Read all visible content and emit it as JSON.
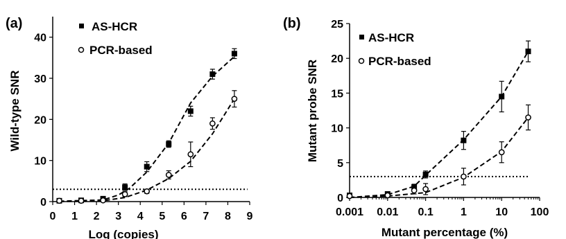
{
  "chart_data": [
    {
      "panel_label": "(a)",
      "type": "scatter",
      "xlabel": "Log (copies)",
      "ylabel": "Wild-type SNR",
      "xlim": [
        0,
        9
      ],
      "ylim": [
        0,
        45
      ],
      "x_ticks": [
        "0",
        "1",
        "2",
        "3",
        "4",
        "5",
        "6",
        "7",
        "8",
        "9"
      ],
      "y_ticks": [
        "0",
        "10",
        "20",
        "30",
        "40"
      ],
      "threshold": 3,
      "legend_position": "top-left",
      "series": [
        {
          "name": "AS-HCR",
          "marker": "filled-square",
          "points": [
            {
              "x": 0.3,
              "y": 0.2,
              "err": 0.4
            },
            {
              "x": 1.3,
              "y": 0.3,
              "err": 0.4
            },
            {
              "x": 2.3,
              "y": 0.7,
              "err": 0.5
            },
            {
              "x": 3.3,
              "y": 3.5,
              "err": 0.8
            },
            {
              "x": 4.3,
              "y": 8.5,
              "err": 1.2
            },
            {
              "x": 5.3,
              "y": 14.0,
              "err": 0.8
            },
            {
              "x": 6.3,
              "y": 22.0,
              "err": 1.2
            },
            {
              "x": 7.3,
              "y": 31.0,
              "err": 1.2
            },
            {
              "x": 8.3,
              "y": 36.0,
              "err": 1.2
            }
          ],
          "fit": [
            [
              0.3,
              0.1
            ],
            [
              2.3,
              0.4
            ],
            [
              3.0,
              1.6
            ],
            [
              3.5,
              3.2
            ],
            [
              4.3,
              7.2
            ],
            [
              5.3,
              14.2
            ],
            [
              6.3,
              24.0
            ],
            [
              7.3,
              30.5
            ],
            [
              8.3,
              35.3
            ]
          ]
        },
        {
          "name": "PCR-based",
          "marker": "open-circle",
          "points": [
            {
              "x": 0.3,
              "y": 0.2,
              "err": 0.3
            },
            {
              "x": 1.3,
              "y": 0.2,
              "err": 0.3
            },
            {
              "x": 2.3,
              "y": 0.3,
              "err": 0.3
            },
            {
              "x": 3.3,
              "y": 1.8,
              "err": 0.6
            },
            {
              "x": 4.3,
              "y": 2.5,
              "err": 0.5
            },
            {
              "x": 5.3,
              "y": 6.5,
              "err": 1.0
            },
            {
              "x": 6.3,
              "y": 11.5,
              "err": 3.0
            },
            {
              "x": 7.3,
              "y": 19.0,
              "err": 1.4
            },
            {
              "x": 8.3,
              "y": 25.0,
              "err": 2.0
            }
          ],
          "fit": [
            [
              0.3,
              0.0
            ],
            [
              2.3,
              0.2
            ],
            [
              3.3,
              1.0
            ],
            [
              4.3,
              2.8
            ],
            [
              5.3,
              5.6
            ],
            [
              6.3,
              9.8
            ],
            [
              7.3,
              16.5
            ],
            [
              8.3,
              25.0
            ]
          ]
        }
      ]
    },
    {
      "panel_label": "(b)",
      "type": "scatter",
      "xlabel": "Mutant percentage (%)",
      "ylabel": "Mutant probe SNR",
      "x_scale": "log",
      "xlim": [
        0.001,
        100
      ],
      "ylim": [
        0,
        25
      ],
      "x_ticks": [
        "0.001",
        "0.01",
        "0.1",
        "1",
        "10",
        "100"
      ],
      "y_ticks": [
        "0",
        "5",
        "10",
        "15",
        "20",
        "25"
      ],
      "threshold": 3,
      "legend_position": "top-left",
      "series": [
        {
          "name": "AS-HCR",
          "marker": "filled-square",
          "points": [
            {
              "x": 0.001,
              "y": 0.3,
              "err": 0.2
            },
            {
              "x": 0.01,
              "y": 0.5,
              "err": 0.2
            },
            {
              "x": 0.05,
              "y": 1.5,
              "err": 0.4
            },
            {
              "x": 0.1,
              "y": 3.3,
              "err": 0.5
            },
            {
              "x": 1,
              "y": 8.2,
              "err": 1.3
            },
            {
              "x": 10,
              "y": 14.5,
              "err": 2.2
            },
            {
              "x": 50,
              "y": 21.0,
              "err": 1.5
            }
          ],
          "fit": [
            [
              0.001,
              0.0
            ],
            [
              0.01,
              0.4
            ],
            [
              0.05,
              1.6
            ],
            [
              0.1,
              3.2
            ],
            [
              1,
              8.3
            ],
            [
              10,
              14.5
            ],
            [
              50,
              21.0
            ]
          ]
        },
        {
          "name": "PCR-based",
          "marker": "open-circle",
          "points": [
            {
              "x": 0.001,
              "y": 0.2,
              "err": 0.2
            },
            {
              "x": 0.01,
              "y": 0.3,
              "err": 0.2
            },
            {
              "x": 0.05,
              "y": 1.0,
              "err": 0.5
            },
            {
              "x": 0.1,
              "y": 1.2,
              "err": 0.8
            },
            {
              "x": 1,
              "y": 3.0,
              "err": 1.2
            },
            {
              "x": 10,
              "y": 6.5,
              "err": 1.5
            },
            {
              "x": 50,
              "y": 11.5,
              "err": 1.8
            }
          ],
          "fit": [
            [
              0.001,
              0.0
            ],
            [
              0.01,
              0.2
            ],
            [
              0.1,
              0.7
            ],
            [
              1,
              2.9
            ],
            [
              10,
              6.6
            ],
            [
              50,
              11.5
            ]
          ]
        }
      ]
    }
  ]
}
